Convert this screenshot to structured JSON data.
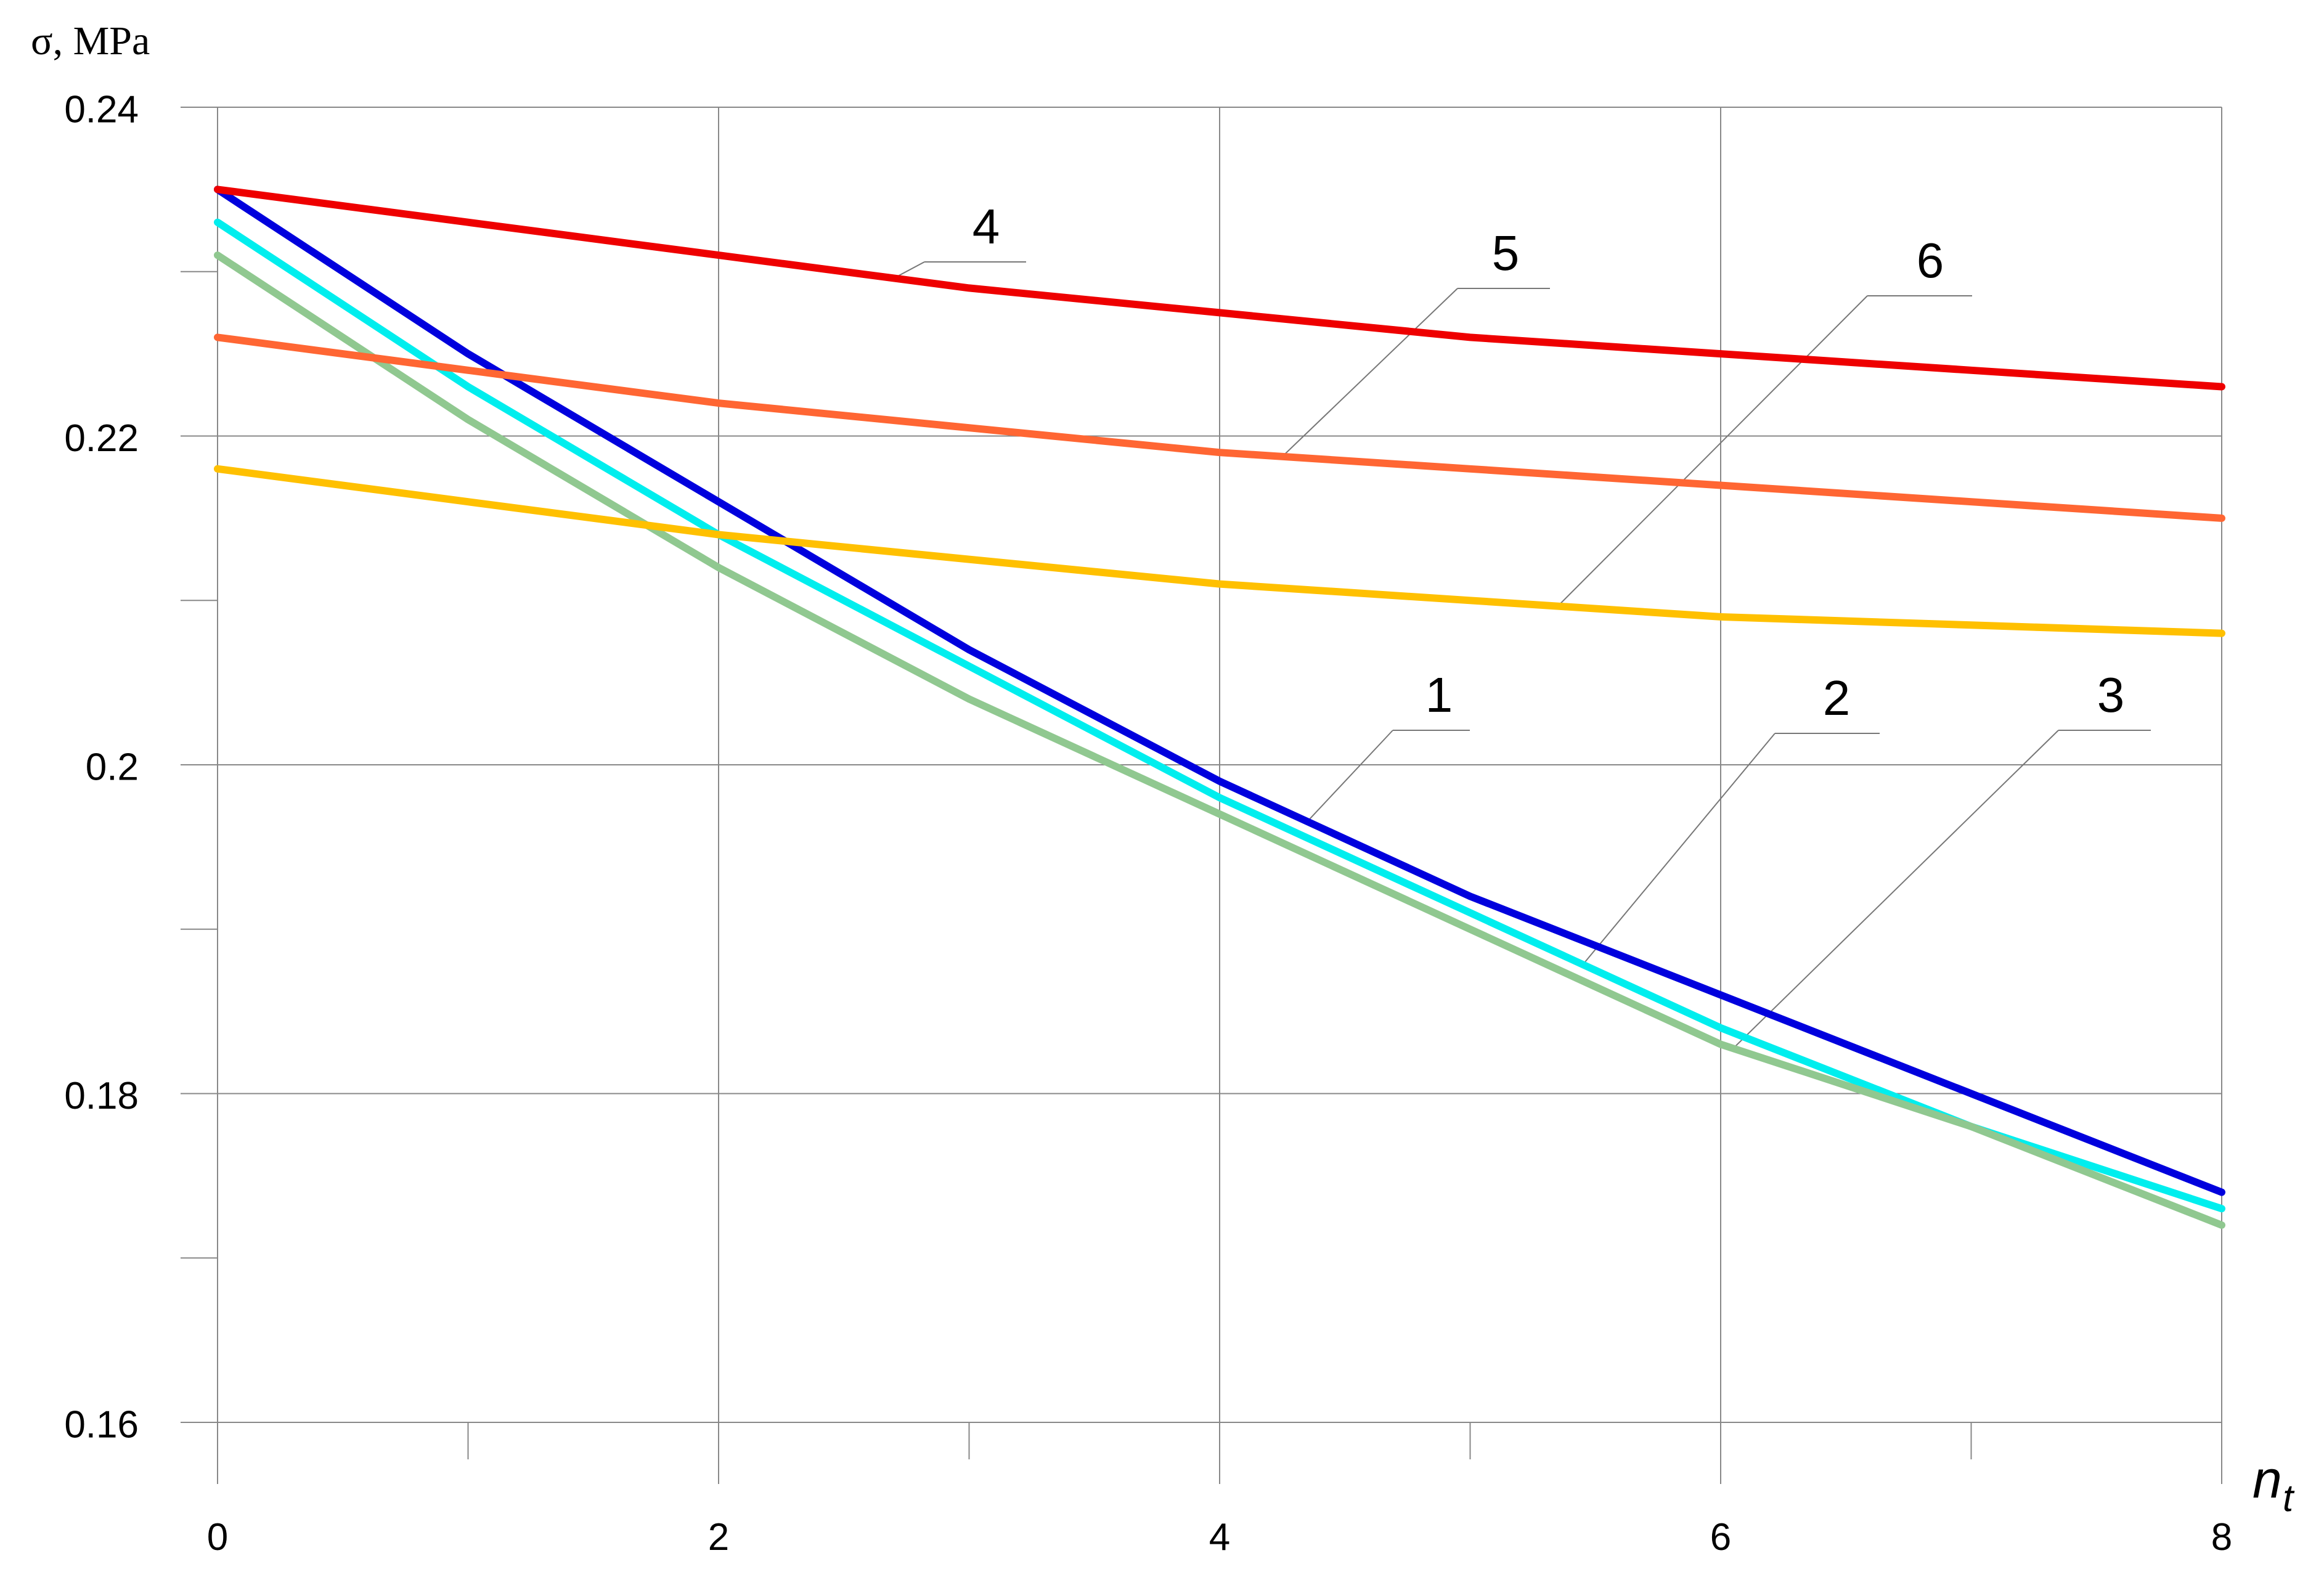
{
  "chart_data": {
    "type": "line",
    "ylabel": "σ, MPa",
    "xlabel_main": "n",
    "xlabel_sub": "t",
    "xlim": [
      0,
      8
    ],
    "ylim": [
      0.16,
      0.24
    ],
    "x_ticks": [
      "0",
      "2",
      "4",
      "6",
      "8"
    ],
    "y_ticks": [
      "0.16",
      "0.18",
      "0.2",
      "0.22",
      "0.24"
    ],
    "grid": true,
    "series": [
      {
        "name": "1",
        "color": "#0000dd",
        "x": [
          0,
          1,
          2,
          3,
          4,
          5,
          6,
          7,
          8
        ],
        "y": [
          0.235,
          0.225,
          0.216,
          0.207,
          0.199,
          0.192,
          0.186,
          0.18,
          0.174
        ]
      },
      {
        "name": "2",
        "color": "#00eeee",
        "x": [
          0,
          1,
          2,
          3,
          4,
          5,
          6,
          7,
          8
        ],
        "y": [
          0.233,
          0.223,
          0.214,
          0.206,
          0.198,
          0.191,
          0.184,
          0.178,
          0.173
        ]
      },
      {
        "name": "3",
        "color": "#90c890",
        "x": [
          0,
          1,
          2,
          3,
          4,
          5,
          6,
          7,
          8
        ],
        "y": [
          0.231,
          0.221,
          0.212,
          0.204,
          0.197,
          0.19,
          0.183,
          0.178,
          0.172
        ]
      },
      {
        "name": "4",
        "color": "#ee0000",
        "x": [
          0,
          1,
          2,
          3,
          4,
          5,
          6,
          7,
          8
        ],
        "y": [
          0.235,
          0.233,
          0.231,
          0.229,
          0.2275,
          0.226,
          0.225,
          0.224,
          0.223
        ]
      },
      {
        "name": "5",
        "color": "#ff6633",
        "x": [
          0,
          1,
          2,
          3,
          4,
          5,
          6,
          7,
          8
        ],
        "y": [
          0.226,
          0.224,
          0.222,
          0.2205,
          0.219,
          0.218,
          0.217,
          0.216,
          0.215
        ]
      },
      {
        "name": "6",
        "color": "#ffc000",
        "x": [
          0,
          1,
          2,
          3,
          4,
          5,
          6,
          7,
          8
        ],
        "y": [
          0.218,
          0.216,
          0.214,
          0.2125,
          0.211,
          0.21,
          0.209,
          0.2085,
          0.208
        ]
      }
    ]
  }
}
